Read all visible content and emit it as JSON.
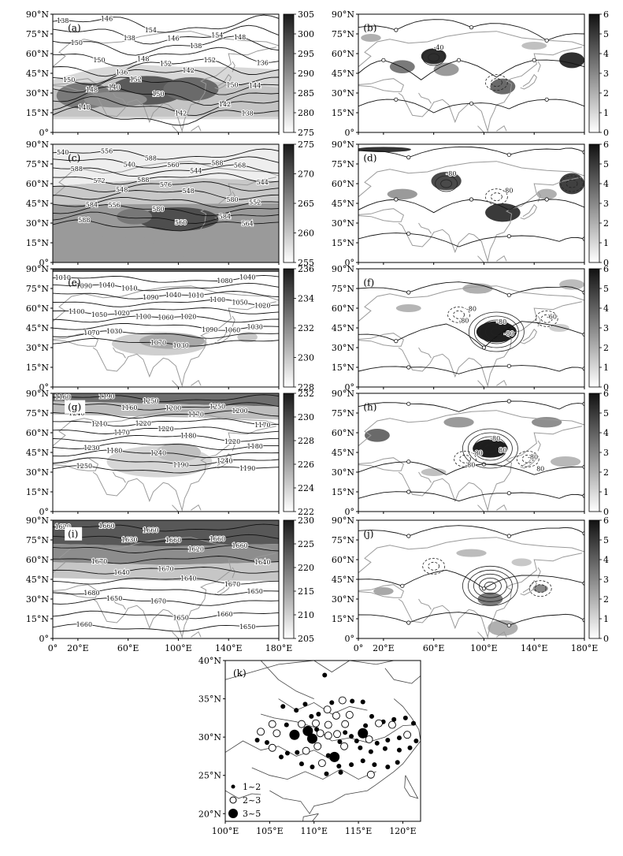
{
  "panels": [
    {
      "id": "a",
      "label": "(a)",
      "colorbar": [
        "305",
        "300",
        "295",
        "290",
        "285",
        "280",
        "275"
      ],
      "contour_labels": [
        "138",
        "138",
        "138",
        "136",
        "136",
        "142",
        "144",
        "140",
        "142",
        "138",
        "146",
        "146",
        "148",
        "150",
        "152",
        "150",
        "148",
        "150",
        "142",
        "148",
        "154",
        "154",
        "150",
        "148",
        "152",
        "150",
        "152"
      ]
    },
    {
      "id": "b",
      "label": "(b)",
      "colorbar": [
        "6",
        "5",
        "4",
        "3",
        "2",
        "1",
        "0"
      ],
      "contour_labels": [
        "-40"
      ]
    },
    {
      "id": "c",
      "label": "(c)",
      "colorbar": [
        "275",
        "270",
        "265",
        "260",
        "255"
      ],
      "contour_labels": [
        "540",
        "540",
        "544",
        "544",
        "548",
        "548",
        "552",
        "556",
        "560",
        "564",
        "556",
        "560",
        "568",
        "572",
        "576",
        "580",
        "584",
        "580",
        "584",
        "588",
        "588",
        "588",
        "588",
        "588"
      ]
    },
    {
      "id": "d",
      "label": "(d)",
      "colorbar": [
        "6",
        "5",
        "4",
        "3",
        "2",
        "1",
        "0"
      ],
      "contour_labels": [
        "-80",
        "80"
      ]
    },
    {
      "id": "e",
      "label": "(e)",
      "colorbar": [
        "236",
        "234",
        "232",
        "230",
        "228"
      ],
      "contour_labels": [
        "1010",
        "1010",
        "1010",
        "1020",
        "1020",
        "1020",
        "1030",
        "1030",
        "1030",
        "1040",
        "1040",
        "1040",
        "1050",
        "1050",
        "1060",
        "1060",
        "1070",
        "1070",
        "1080",
        "1090",
        "1090",
        "1100",
        "1100",
        "1100",
        "1090"
      ]
    },
    {
      "id": "f",
      "label": "(f)",
      "colorbar": [
        "6",
        "5",
        "4",
        "3",
        "2",
        "1",
        "0"
      ],
      "contour_labels": [
        "-80",
        "-80",
        "-60",
        "-80",
        "-80"
      ]
    },
    {
      "id": "g",
      "label": "(g)",
      "colorbar": [
        "232",
        "230",
        "228",
        "226",
        "224",
        "222"
      ],
      "contour_labels": [
        "1160",
        "1160",
        "1170",
        "1170",
        "1170",
        "1180",
        "1180",
        "1180",
        "1190",
        "1190",
        "1190",
        "1200",
        "1200",
        "1210",
        "1220",
        "1220",
        "1230",
        "1240",
        "1240",
        "1250",
        "1250",
        "1250",
        "1240",
        "1220"
      ]
    },
    {
      "id": "h",
      "label": "(h)",
      "colorbar": [
        "6",
        "5",
        "4",
        "3",
        "2",
        "1",
        "0"
      ],
      "contour_labels": [
        "-80",
        "-80",
        "-80",
        "80",
        "-80",
        "80"
      ]
    },
    {
      "id": "i",
      "label": "(i)",
      "colorbar": [
        "230",
        "225",
        "220",
        "215",
        "210",
        "205"
      ],
      "contour_labels": [
        "1620",
        "1630",
        "1620",
        "1640",
        "1640",
        "1640",
        "1650",
        "1650",
        "1650",
        "1650",
        "1660",
        "1660",
        "1660",
        "1670",
        "1670",
        "1670",
        "1680",
        "1670",
        "1660",
        "1660",
        "1660",
        "1660"
      ]
    },
    {
      "id": "j",
      "label": "(j)",
      "colorbar": [
        "6",
        "5",
        "4",
        "3",
        "2",
        "1",
        "0"
      ],
      "contour_labels": []
    }
  ],
  "map_axes": {
    "lat_ticks": [
      "90°N",
      "75°N",
      "60°N",
      "45°N",
      "30°N",
      "15°N",
      "0°"
    ],
    "lon_ticks": [
      "0°",
      "20°E",
      "60°E",
      "100°E",
      "140°E",
      "180°E"
    ]
  },
  "panel_k": {
    "label": "(k)",
    "lat_ticks": [
      "40°N",
      "35°N",
      "30°N",
      "25°N",
      "20°N"
    ],
    "lon_ticks": [
      "100°E",
      "105°E",
      "110°E",
      "115°E",
      "120°E"
    ],
    "legend": [
      {
        "symbol": "small-filled-dot",
        "label": "1~2"
      },
      {
        "symbol": "open-circle",
        "label": "2~3"
      },
      {
        "symbol": "large-filled-dot",
        "label": "3~5"
      }
    ],
    "stations": [
      [
        111.2,
        38.1,
        1
      ],
      [
        106.5,
        34.0,
        1
      ],
      [
        108.0,
        33.5,
        1
      ],
      [
        109.0,
        34.3,
        1
      ],
      [
        110.5,
        33.0,
        1
      ],
      [
        112.0,
        34.5,
        1
      ],
      [
        113.2,
        34.8,
        2
      ],
      [
        114.3,
        34.7,
        1
      ],
      [
        115.5,
        34.6,
        1
      ],
      [
        111.5,
        33.6,
        2
      ],
      [
        109.7,
        32.7,
        1
      ],
      [
        112.5,
        32.8,
        2
      ],
      [
        114.0,
        32.9,
        2
      ],
      [
        116.5,
        32.7,
        1
      ],
      [
        117.8,
        32.0,
        1
      ],
      [
        119.0,
        32.3,
        1
      ],
      [
        120.3,
        32.5,
        1
      ],
      [
        121.2,
        31.8,
        1
      ],
      [
        118.8,
        31.6,
        2
      ],
      [
        117.3,
        31.8,
        2
      ],
      [
        115.8,
        31.5,
        1
      ],
      [
        113.5,
        31.7,
        2
      ],
      [
        111.6,
        31.6,
        2
      ],
      [
        110.2,
        31.8,
        2
      ],
      [
        108.6,
        31.7,
        2
      ],
      [
        106.9,
        31.6,
        1
      ],
      [
        105.3,
        31.7,
        2
      ],
      [
        104.0,
        30.7,
        2
      ],
      [
        103.6,
        29.6,
        1
      ],
      [
        104.7,
        29.3,
        1
      ],
      [
        105.8,
        30.5,
        2
      ],
      [
        107.8,
        30.3,
        3
      ],
      [
        109.3,
        30.8,
        3
      ],
      [
        109.8,
        29.8,
        3
      ],
      [
        110.7,
        30.5,
        2
      ],
      [
        111.6,
        30.2,
        2
      ],
      [
        112.6,
        30.4,
        2
      ],
      [
        113.5,
        30.6,
        1
      ],
      [
        114.2,
        30.1,
        1
      ],
      [
        115.5,
        30.5,
        3
      ],
      [
        114.8,
        29.5,
        1
      ],
      [
        116.2,
        29.7,
        2
      ],
      [
        117.1,
        29.2,
        1
      ],
      [
        118.3,
        29.6,
        1
      ],
      [
        119.6,
        29.9,
        1
      ],
      [
        120.5,
        30.3,
        2
      ],
      [
        121.5,
        29.5,
        1
      ],
      [
        120.8,
        28.6,
        1
      ],
      [
        119.6,
        28.3,
        1
      ],
      [
        118.0,
        28.5,
        1
      ],
      [
        116.4,
        28.1,
        1
      ],
      [
        115.2,
        28.6,
        1
      ],
      [
        113.4,
        28.8,
        2
      ],
      [
        112.3,
        27.4,
        3
      ],
      [
        111.6,
        27.6,
        1
      ],
      [
        110.4,
        28.8,
        2
      ],
      [
        109.1,
        28.2,
        2
      ],
      [
        108.1,
        28.0,
        1
      ],
      [
        107.0,
        27.9,
        1
      ],
      [
        106.3,
        27.4,
        1
      ],
      [
        105.3,
        28.6,
        2
      ],
      [
        108.6,
        26.5,
        1
      ],
      [
        109.8,
        26.1,
        1
      ],
      [
        110.9,
        26.6,
        2
      ],
      [
        112.8,
        26.2,
        1
      ],
      [
        114.2,
        26.4,
        1
      ],
      [
        115.5,
        26.9,
        1
      ],
      [
        116.8,
        26.4,
        1
      ],
      [
        118.3,
        26.1,
        1
      ],
      [
        119.4,
        26.7,
        1
      ],
      [
        113.0,
        25.4,
        1
      ],
      [
        111.4,
        25.2,
        1
      ],
      [
        116.4,
        25.1,
        2
      ],
      [
        110.3,
        31.0,
        1
      ],
      [
        112.9,
        29.4,
        1
      ]
    ]
  }
}
